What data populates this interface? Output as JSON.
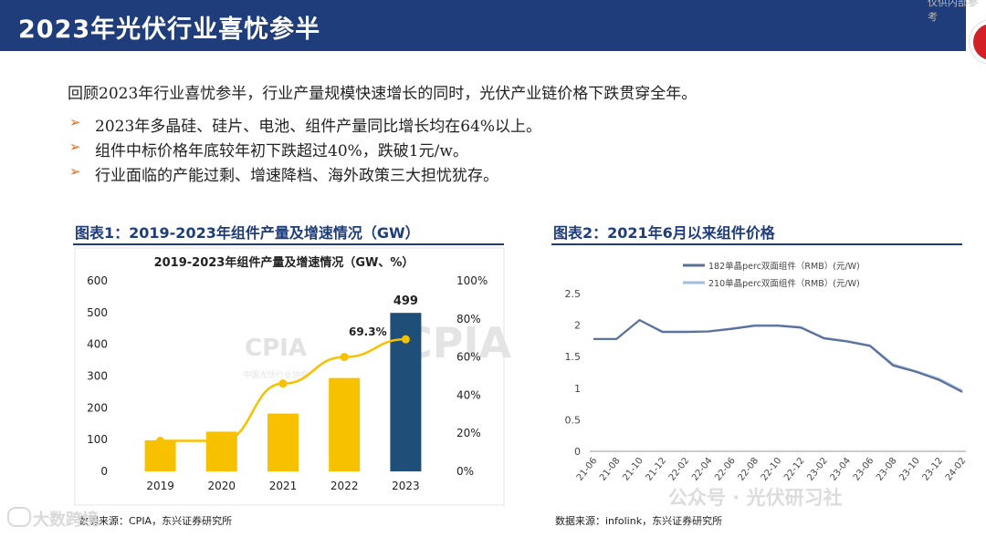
{
  "header": {
    "title": "2023年光伏行业喜忧参半",
    "corner_text": "仅供内部参考"
  },
  "intro": "回顾2023年行业喜忧参半，行业产量规模快速增长的同时，光伏产业链价格下跌贯穿全年。",
  "bullets": [
    "2023年多晶硅、硅片、电池、组件产量同比增长均在64%以上。",
    "组件中标价格年底较年初下跌超过40%，跌破1元/w。",
    "行业面临的产能过剩、增速降档、海外政策三大担忧犹存。"
  ],
  "figure1": {
    "label": "图表1：2019-2023年组件产量及增速情况（GW）",
    "source": "数据来源：CPIA，东兴证券研究所"
  },
  "figure2": {
    "label": "图表2：2021年6月以来组件价格",
    "source": "数据来源：infolink，东兴证券研究所"
  },
  "watermarks": {
    "left": "大数跨境",
    "right": "公众号 · 光伏研习社",
    "cpia": "CPIA",
    "cpia_sub": "中国光伏行业协会"
  },
  "colors": {
    "header_bg": "#1f3d7a",
    "bar_gold": "#f7c100",
    "bar_highlight": "#1f4e79",
    "line_gold": "#f7c100",
    "series_182": "#5a6f9a",
    "series_210": "#9fbcd9",
    "bullet_arrow": "#e86a1c"
  },
  "chart_data": [
    {
      "type": "bar",
      "title": "2019-2023年组件产量及增速情况（GW、%）",
      "categories": [
        "2019",
        "2020",
        "2021",
        "2022",
        "2023"
      ],
      "series": [
        {
          "name": "组件产量",
          "unit": "GW",
          "values": [
            98,
            125,
            182,
            294,
            499
          ]
        },
        {
          "name": "增速",
          "unit": "%",
          "axis": "right",
          "values": [
            16,
            16,
            46.1,
            60,
            69.3
          ]
        }
      ],
      "y_ticks": [
        "0",
        "100",
        "200",
        "300",
        "400",
        "500",
        "600"
      ],
      "ylim": [
        0,
        600
      ],
      "y2_ticks": [
        "0%",
        "20%",
        "40%",
        "60%",
        "80%",
        "100%"
      ],
      "y2lim": [
        0,
        100
      ],
      "data_labels": [
        "499",
        "69.3%"
      ]
    },
    {
      "type": "line",
      "title": "",
      "x": [
        "21-06",
        "21-08",
        "21-10",
        "21-12",
        "22-02",
        "22-04",
        "22-06",
        "22-08",
        "22-10",
        "22-12",
        "23-02",
        "23-04",
        "23-06",
        "23-08",
        "23-10",
        "23-12",
        "24-02"
      ],
      "series": [
        {
          "name": "182单晶perc双面组件（RMB）(元/W)",
          "values": [
            1.78,
            1.78,
            2.08,
            1.89,
            1.89,
            1.9,
            1.94,
            1.99,
            1.99,
            1.96,
            1.79,
            1.74,
            1.67,
            1.36,
            1.26,
            1.13,
            0.94
          ]
        },
        {
          "name": "210单晶perc双面组件（RMB）(元/W)",
          "values": [
            1.78,
            1.78,
            2.08,
            1.9,
            1.9,
            1.9,
            1.95,
            2.0,
            2.0,
            1.97,
            1.8,
            1.75,
            1.68,
            1.38,
            1.27,
            1.15,
            0.96
          ]
        }
      ],
      "y_ticks": [
        "0",
        "0.5",
        "1",
        "1.5",
        "2",
        "2.5"
      ],
      "ylim": [
        0,
        2.5
      ]
    }
  ]
}
